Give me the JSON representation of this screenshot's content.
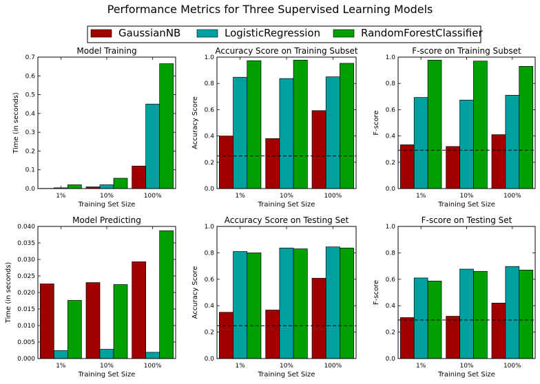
{
  "figure_title": "Performance Metrics for Three Supervised Learning Models",
  "legend": [
    {
      "label": "GaussianNB",
      "color": "#a00000"
    },
    {
      "label": "LogisticRegression",
      "color": "#00a0a0"
    },
    {
      "label": "RandomForestClassifier",
      "color": "#00a000"
    }
  ],
  "chart_data": [
    {
      "type": "bar",
      "title": "Model Training",
      "xlabel": "Training Set Size",
      "ylabel": "Time (in seconds)",
      "categories": [
        "1%",
        "10%",
        "100%"
      ],
      "ylim": [
        0,
        0.7
      ],
      "yticks": [
        "0.0",
        "0.1",
        "0.2",
        "0.3",
        "0.4",
        "0.5",
        "0.6",
        "0.7"
      ],
      "series": [
        {
          "name": "GaussianNB",
          "values": [
            0.001,
            0.009,
            0.12
          ]
        },
        {
          "name": "LogisticRegression",
          "values": [
            0.004,
            0.02,
            0.45
          ]
        },
        {
          "name": "RandomForestClassifier",
          "values": [
            0.02,
            0.055,
            0.665
          ]
        }
      ]
    },
    {
      "type": "bar",
      "title": "Accuracy Score on Training Subset",
      "xlabel": "Training Set Size",
      "ylabel": "Accuracy Score",
      "categories": [
        "1%",
        "10%",
        "100%"
      ],
      "ylim": [
        0,
        1.0
      ],
      "yticks": [
        "0.0",
        "0.2",
        "0.4",
        "0.6",
        "0.8",
        "1.0"
      ],
      "baseline": 0.2478,
      "series": [
        {
          "name": "GaussianNB",
          "values": [
            0.4,
            0.38,
            0.593
          ]
        },
        {
          "name": "LogisticRegression",
          "values": [
            0.847,
            0.837,
            0.85
          ]
        },
        {
          "name": "RandomForestClassifier",
          "values": [
            0.973,
            0.977,
            0.953
          ]
        }
      ]
    },
    {
      "type": "bar",
      "title": "F-score on Training Subset",
      "xlabel": "Training Set Size",
      "ylabel": "F-score",
      "categories": [
        "1%",
        "10%",
        "100%"
      ],
      "ylim": [
        0,
        1.0
      ],
      "yticks": [
        "0.0",
        "0.2",
        "0.4",
        "0.6",
        "0.8",
        "1.0"
      ],
      "baseline": 0.2917,
      "series": [
        {
          "name": "GaussianNB",
          "values": [
            0.333,
            0.32,
            0.41
          ]
        },
        {
          "name": "LogisticRegression",
          "values": [
            0.693,
            0.673,
            0.71
          ]
        },
        {
          "name": "RandomForestClassifier",
          "values": [
            0.977,
            0.97,
            0.93
          ]
        }
      ]
    },
    {
      "type": "bar",
      "title": "Model Predicting",
      "xlabel": "Training Set Size",
      "ylabel": "Time (in seconds)",
      "categories": [
        "1%",
        "10%",
        "100%"
      ],
      "ylim": [
        0,
        0.04
      ],
      "yticks": [
        "0.000",
        "0.005",
        "0.010",
        "0.015",
        "0.020",
        "0.025",
        "0.030",
        "0.035",
        "0.040"
      ],
      "series": [
        {
          "name": "GaussianNB",
          "values": [
            0.0226,
            0.023,
            0.0293
          ]
        },
        {
          "name": "LogisticRegression",
          "values": [
            0.0024,
            0.0028,
            0.0019
          ]
        },
        {
          "name": "RandomForestClassifier",
          "values": [
            0.0176,
            0.0224,
            0.0387
          ]
        }
      ]
    },
    {
      "type": "bar",
      "title": "Accuracy Score on Testing Set",
      "xlabel": "Training Set Size",
      "ylabel": "Accuracy Score",
      "categories": [
        "1%",
        "10%",
        "100%"
      ],
      "ylim": [
        0,
        1.0
      ],
      "yticks": [
        "0.0",
        "0.2",
        "0.4",
        "0.6",
        "0.8",
        "1.0"
      ],
      "baseline": 0.2478,
      "series": [
        {
          "name": "GaussianNB",
          "values": [
            0.35,
            0.367,
            0.608
          ]
        },
        {
          "name": "LogisticRegression",
          "values": [
            0.81,
            0.837,
            0.845
          ]
        },
        {
          "name": "RandomForestClassifier",
          "values": [
            0.8,
            0.83,
            0.837
          ]
        }
      ]
    },
    {
      "type": "bar",
      "title": "F-score on Testing Set",
      "xlabel": "Training Set Size",
      "ylabel": "F-score",
      "categories": [
        "1%",
        "10%",
        "100%"
      ],
      "ylim": [
        0,
        1.0
      ],
      "yticks": [
        "0.0",
        "0.2",
        "0.4",
        "0.6",
        "0.8",
        "1.0"
      ],
      "baseline": 0.2917,
      "series": [
        {
          "name": "GaussianNB",
          "values": [
            0.31,
            0.32,
            0.42
          ]
        },
        {
          "name": "LogisticRegression",
          "values": [
            0.61,
            0.677,
            0.697
          ]
        },
        {
          "name": "RandomForestClassifier",
          "values": [
            0.587,
            0.66,
            0.67
          ]
        }
      ]
    }
  ]
}
